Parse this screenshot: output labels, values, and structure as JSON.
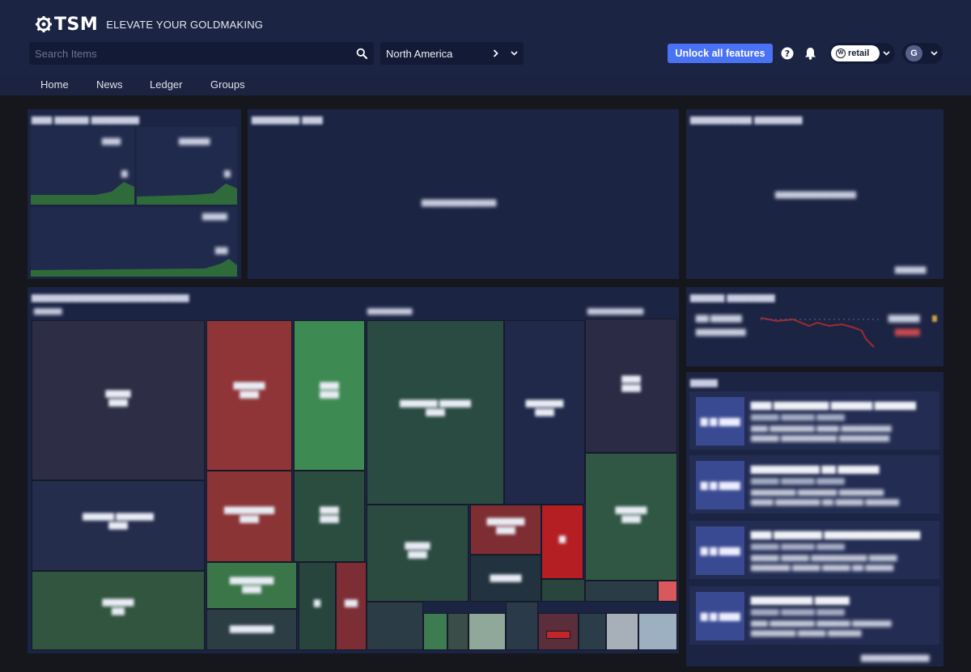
{
  "header": {
    "logo_text": "TSM",
    "tagline": "ELEVATE YOUR GOLDMAKING",
    "search_placeholder": "Search Items",
    "region": "North America",
    "unlock_label": "Unlock all features",
    "retail_label": "retail",
    "retail_badge": "W",
    "avatar_letter": "G",
    "icons": [
      "search-icon",
      "chevron-right-icon",
      "chevron-down-icon",
      "help-icon",
      "bell-icon"
    ]
  },
  "nav": {
    "items": [
      {
        "label": "Home"
      },
      {
        "label": "News"
      },
      {
        "label": "Ledger"
      },
      {
        "label": "Groups"
      }
    ]
  },
  "colors": {
    "header_bg": "#1c2444",
    "accent": "#4a72f5",
    "panel_bg": "#1c2444",
    "positive": "#3d8a55",
    "negative": "#8f3538"
  }
}
